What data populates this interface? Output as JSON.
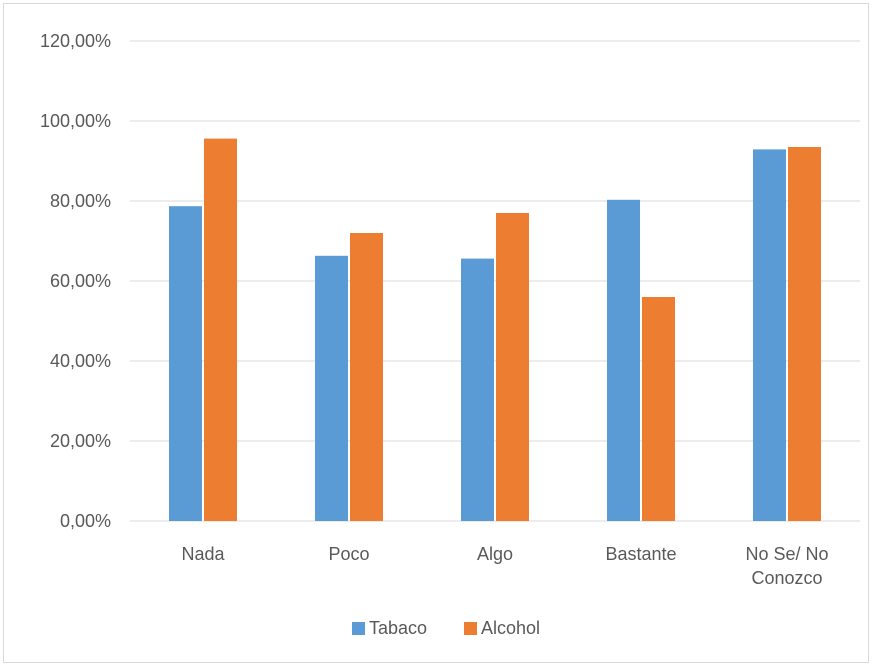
{
  "chart_data": {
    "type": "bar",
    "categories": [
      [
        "Nada"
      ],
      [
        "Poco"
      ],
      [
        "Algo"
      ],
      [
        "Bastante"
      ],
      [
        "No Se/ No",
        "Conozco"
      ]
    ],
    "series": [
      {
        "name": "Tabaco",
        "color": "#5b9bd5",
        "values": [
          78.7,
          66.3,
          65.6,
          80.3,
          92.9
        ]
      },
      {
        "name": "Alcohol",
        "color": "#ed7d31",
        "values": [
          95.6,
          72.0,
          77.0,
          56.0,
          93.5
        ]
      }
    ],
    "ylim": [
      0,
      120
    ],
    "yticks": [
      "0,00%",
      "20,00%",
      "40,00%",
      "60,00%",
      "80,00%",
      "100,00%",
      "120,00%"
    ],
    "ytick_values": [
      0,
      20,
      40,
      60,
      80,
      100,
      120
    ],
    "grid": true,
    "legend_position": "bottom",
    "gridline_color": "#d9d9d9",
    "title": "",
    "xlabel": "",
    "ylabel": ""
  }
}
